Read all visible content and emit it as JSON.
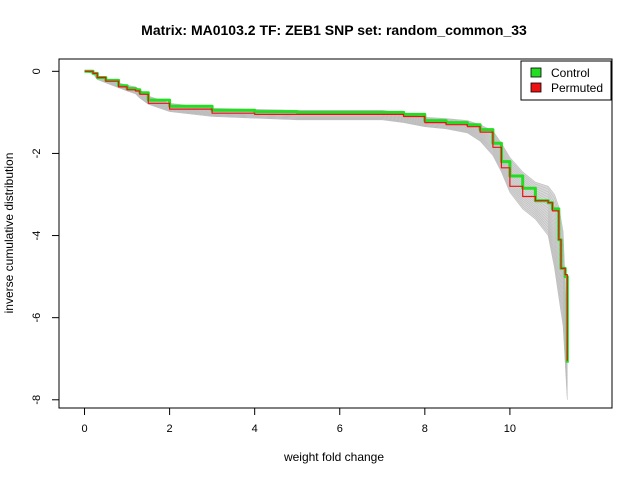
{
  "chart_data": {
    "type": "line",
    "title": "Matrix: MA0103.2 TF: ZEB1 SNP set: random_common_33",
    "xlabel": "weight fold change",
    "ylabel": "inverse cumulative distribution",
    "xlim": [
      -0.6,
      12.4
    ],
    "ylim": [
      -8.2,
      0.3
    ],
    "x_ticks": [
      0,
      2,
      4,
      6,
      8,
      10
    ],
    "y_ticks": [
      0,
      -2,
      -4,
      -6,
      -8
    ],
    "grid": false,
    "legend_position": "top-right",
    "legend": [
      {
        "label": "Control",
        "color": "#22dd22"
      },
      {
        "label": "Permuted",
        "color": "#ee1111"
      }
    ],
    "background_band": {
      "name": "Permuted samples (gray)",
      "color": "#bdbdbd",
      "x": [
        0.0,
        0.2,
        0.3,
        0.5,
        0.8,
        1.0,
        1.2,
        1.3,
        1.5,
        2.0,
        3.0,
        5.0,
        7.0,
        7.5,
        8.0,
        8.5,
        9.0,
        9.3,
        9.6,
        9.8,
        10.0,
        10.3,
        10.6,
        10.9,
        11.05,
        11.15,
        11.25,
        11.35
      ],
      "upper": [
        0.0,
        -0.02,
        -0.12,
        -0.18,
        -0.28,
        -0.34,
        -0.38,
        -0.45,
        -0.6,
        -0.78,
        -0.9,
        -0.95,
        -0.95,
        -1.02,
        -1.12,
        -1.15,
        -1.2,
        -1.3,
        -1.45,
        -1.75,
        -2.1,
        -2.45,
        -2.7,
        -2.8,
        -3.0,
        -3.3,
        -3.9,
        -6.5
      ],
      "lower": [
        0.0,
        -0.05,
        -0.2,
        -0.28,
        -0.4,
        -0.48,
        -0.55,
        -0.65,
        -0.8,
        -0.98,
        -1.1,
        -1.18,
        -1.18,
        -1.25,
        -1.35,
        -1.4,
        -1.5,
        -1.7,
        -2.05,
        -2.45,
        -2.95,
        -3.35,
        -3.6,
        -4.0,
        -4.8,
        -5.5,
        -6.2,
        -8.0
      ]
    },
    "series": [
      {
        "name": "Control",
        "color": "#22dd22",
        "x": [
          0.0,
          0.1,
          0.2,
          0.3,
          0.5,
          0.8,
          1.0,
          1.2,
          1.3,
          1.5,
          2.0,
          3.0,
          4.0,
          5.0,
          6.0,
          7.0,
          7.5,
          8.0,
          8.5,
          9.0,
          9.3,
          9.6,
          9.8,
          10.0,
          10.3,
          10.6,
          10.9,
          11.0,
          11.15,
          11.2,
          11.3,
          11.35
        ],
        "y": [
          0.0,
          0.0,
          -0.05,
          -0.15,
          -0.22,
          -0.35,
          -0.42,
          -0.45,
          -0.52,
          -0.7,
          -0.85,
          -0.95,
          -0.98,
          -1.0,
          -1.0,
          -1.0,
          -1.05,
          -1.2,
          -1.25,
          -1.3,
          -1.42,
          -1.75,
          -2.2,
          -2.55,
          -2.85,
          -3.15,
          -3.2,
          -3.35,
          -4.1,
          -4.8,
          -5.0,
          -7.1
        ]
      },
      {
        "name": "Permuted",
        "color": "#ee1111",
        "x": [
          0.0,
          0.1,
          0.2,
          0.3,
          0.5,
          0.8,
          1.0,
          1.2,
          1.3,
          1.5,
          2.0,
          3.0,
          4.0,
          5.0,
          6.0,
          7.0,
          7.5,
          8.0,
          8.5,
          9.0,
          9.3,
          9.6,
          9.8,
          10.0,
          10.3,
          10.6,
          10.9,
          11.0,
          11.15,
          11.2,
          11.3,
          11.35
        ],
        "y": [
          0.0,
          0.0,
          -0.05,
          -0.15,
          -0.24,
          -0.38,
          -0.45,
          -0.48,
          -0.56,
          -0.78,
          -0.92,
          -1.02,
          -1.05,
          -1.05,
          -1.05,
          -1.05,
          -1.1,
          -1.25,
          -1.3,
          -1.35,
          -1.48,
          -1.85,
          -2.35,
          -2.8,
          -3.05,
          -3.15,
          -3.2,
          -3.4,
          -4.1,
          -4.8,
          -4.95,
          -7.05
        ]
      }
    ]
  }
}
